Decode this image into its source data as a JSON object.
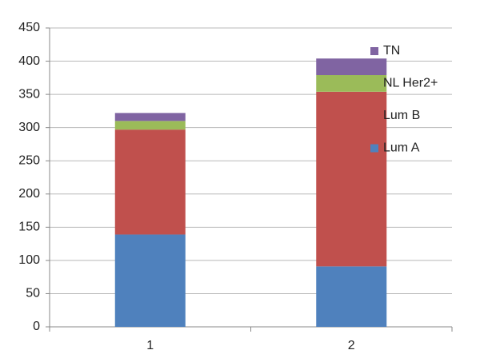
{
  "chart_data": {
    "type": "stacked_bar",
    "categories": [
      "1",
      "2"
    ],
    "series": [
      {
        "name": "Lum A",
        "color": "#4f81bd",
        "values": [
          139,
          91
        ]
      },
      {
        "name": "Lum B",
        "color": "#c0504d",
        "values": [
          158,
          263
        ]
      },
      {
        "name": "NL Her2+",
        "color": "#9bbb59",
        "values": [
          13,
          25
        ]
      },
      {
        "name": "TN",
        "color": "#8064a2",
        "values": [
          12,
          25
        ]
      }
    ],
    "ylim": [
      0,
      450
    ],
    "yticks": [
      0,
      50,
      100,
      150,
      200,
      250,
      300,
      350,
      400,
      450
    ],
    "grid": true,
    "legend": "right"
  }
}
